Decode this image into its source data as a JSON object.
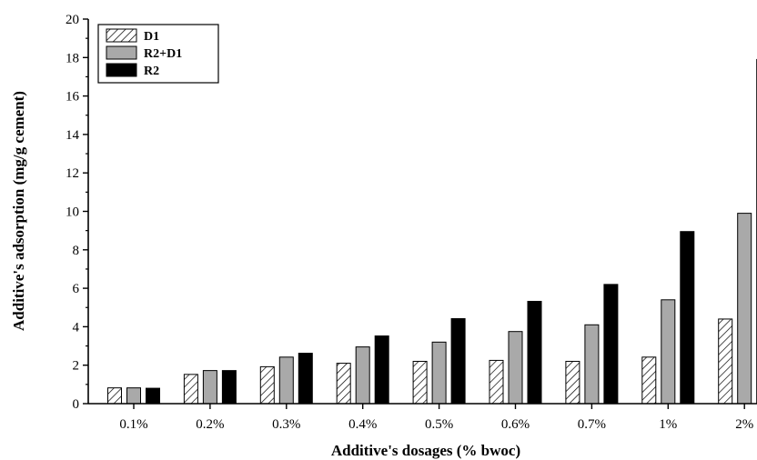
{
  "chart_data": {
    "type": "bar",
    "title": "",
    "xlabel": "Additive's dosages (% bwoc)",
    "ylabel": "Additive's adsorption (mg/g cement)",
    "categories": [
      "0.1%",
      "0.2%",
      "0.3%",
      "0.4%",
      "0.5%",
      "0.6%",
      "0.7%",
      "1%",
      "2%"
    ],
    "ylim": [
      0,
      20
    ],
    "yticks": [
      0,
      2,
      4,
      6,
      8,
      10,
      12,
      14,
      16,
      18,
      20
    ],
    "grid": false,
    "legend_position": "top-left",
    "series": [
      {
        "name": "D1",
        "fill": "hatch",
        "color": "#000000",
        "values": [
          0.82,
          1.52,
          1.92,
          2.1,
          2.2,
          2.25,
          2.2,
          2.42,
          4.4
        ]
      },
      {
        "name": "R2+D1",
        "fill": "solid",
        "color": "#a9a9a9",
        "values": [
          0.82,
          1.72,
          2.42,
          2.95,
          3.2,
          3.75,
          4.1,
          5.4,
          9.9
        ]
      },
      {
        "name": "R2",
        "fill": "solid",
        "color": "#000000",
        "values": [
          0.8,
          1.72,
          2.62,
          3.52,
          4.42,
          5.32,
          6.2,
          8.95,
          17.9
        ]
      }
    ]
  }
}
